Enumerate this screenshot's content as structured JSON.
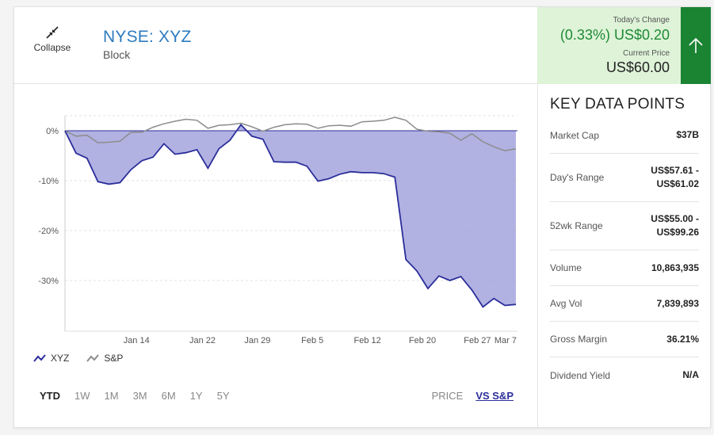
{
  "header": {
    "collapse_label": "Collapse",
    "ticker": "NYSE: XYZ",
    "company": "Block"
  },
  "change": {
    "label": "Today's Change",
    "value": "(0.33%) US$0.20",
    "price_label": "Current Price",
    "price": "US$60.00",
    "direction_icon": "arrow-up-icon"
  },
  "legend": {
    "xyz": "XYZ",
    "sp": "S&P"
  },
  "ranges": [
    "YTD",
    "1W",
    "1M",
    "3M",
    "6M",
    "1Y",
    "5Y"
  ],
  "active_range": "YTD",
  "modes": {
    "price": "PRICE",
    "vs_sp": "VS S&P"
  },
  "active_mode": "VS S&P",
  "key_data": {
    "title": "KEY DATA POINTS",
    "rows": [
      {
        "label": "Market Cap",
        "value": "$37B"
      },
      {
        "label": "Day's Range",
        "value": "US$57.61 -\nUS$61.02"
      },
      {
        "label": "52wk Range",
        "value": "US$55.00 -\nUS$99.26"
      },
      {
        "label": "Volume",
        "value": "10,863,935"
      },
      {
        "label": "Avg Vol",
        "value": "7,839,893"
      },
      {
        "label": "Gross Margin",
        "value": "36.21%"
      },
      {
        "label": "Dividend Yield",
        "value": "N/A"
      }
    ]
  },
  "colors": {
    "xyz_line": "#2b2e9a",
    "xyz_fill": "#a9aadf",
    "sp_line": "#8c8c8c",
    "up_green": "#1a8433"
  },
  "chart_data": {
    "type": "area",
    "x_tick_labels": [
      "Jan 14",
      "Jan 22",
      "Jan 29",
      "Feb 5",
      "Feb 12",
      "Feb 20",
      "Feb 27",
      "Mar 7"
    ],
    "y_tick_labels": [
      "0%",
      "-10%",
      "-20%",
      "-30%"
    ],
    "y_ticks": [
      0,
      -10,
      -20,
      -30
    ],
    "ylim": [
      -40,
      3
    ],
    "grid": true,
    "legend_placement": "bottom-left",
    "series": [
      {
        "name": "XYZ",
        "values": [
          0,
          -4.5,
          -5.5,
          -10.2,
          -10.7,
          -10.4,
          -7.8,
          -6.0,
          -5.3,
          -2.6,
          -4.7,
          -4.4,
          -3.8,
          -7.5,
          -3.6,
          -1.9,
          1.2,
          -1.1,
          -1.7,
          -6.2,
          -6.3,
          -6.3,
          -7.1,
          -10.1,
          -9.6,
          -8.7,
          -8.2,
          -8.4,
          -8.4,
          -8.6,
          -9.3,
          -25.8,
          -28.1,
          -31.6,
          -29.1,
          -30.0,
          -29.2,
          -31.9,
          -35.3,
          -33.6,
          -35.0,
          -34.8
        ]
      },
      {
        "name": "S&P",
        "values": [
          0,
          -1.1,
          -0.9,
          -2.4,
          -2.3,
          -2.1,
          -0.3,
          -0.3,
          0.7,
          1.4,
          1.9,
          2.3,
          2.1,
          0.5,
          1.1,
          1.2,
          1.5,
          0.8,
          -0.1,
          0.7,
          1.2,
          1.4,
          1.3,
          0.5,
          1.0,
          1.1,
          0.9,
          1.8,
          1.9,
          2.1,
          2.7,
          2.1,
          0.3,
          -0.1,
          -0.2,
          -0.5,
          -1.9,
          -0.6,
          -2.2,
          -3.2,
          -4.0,
          -3.6
        ]
      }
    ]
  }
}
